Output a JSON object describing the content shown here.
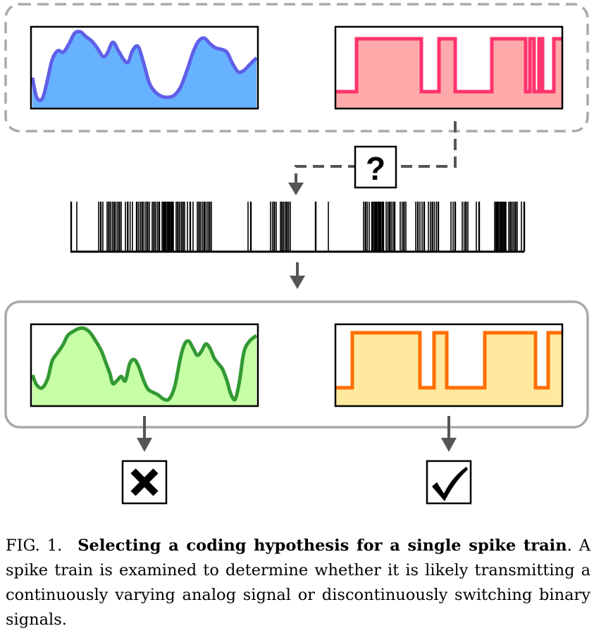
{
  "question_mark": "?",
  "caption": {
    "label": "FIG. 1.",
    "title": "Selecting a coding hypothesis for a single spike train",
    "text": ". A spike train is examined to determine whether it is likely transmitting a continuously varying analog signal or discontinuously switching binary signals."
  },
  "colors": {
    "analog_fill": "#66b2ff",
    "analog_line": "#5f5fe8",
    "binary_fill": "#ffaaaa",
    "binary_line": "#ff336e",
    "decoded_analog_fill": "#c6ffa6",
    "decoded_analog_line": "#339933",
    "decoded_binary_fill": "#ffe99e",
    "decoded_binary_line": "#ff6e00",
    "dashed_box": "#aaaaaa",
    "solid_box": "#aaaaaa",
    "arrow": "#555555"
  },
  "icons": {
    "reject": "x-mark-icon",
    "accept": "check-mark-icon"
  }
}
